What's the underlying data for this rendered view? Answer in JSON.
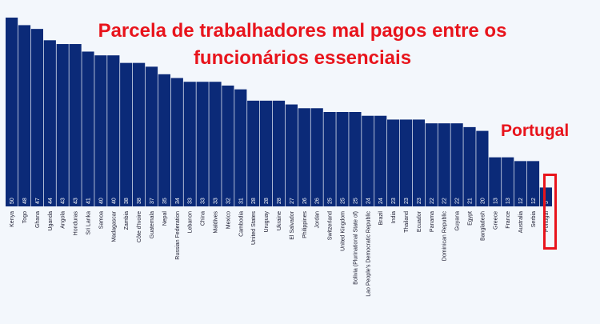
{
  "colors": {
    "bar": "#0b2a78",
    "highlight": "#e8141c",
    "background": "#f3f7fc"
  },
  "chart_data": {
    "type": "bar",
    "title": "Parcela de trabalhadores mal pagos entre os funcionários essenciais",
    "highlight_label": "Portugal",
    "highlight_category": "Portugal",
    "categories": [
      "Kenya",
      "Togo",
      "Ghana",
      "Uganda",
      "Angola",
      "Honduras",
      "Sri Lanka",
      "Samoa",
      "Madagascar",
      "Zambia",
      "Côte d'Ivoire",
      "Guatemala",
      "Nepal",
      "Russian Federation",
      "Lebanon",
      "China",
      "Maldives",
      "Mexico",
      "Cambodia",
      "United States",
      "Uruguay",
      "Ukraine",
      "El Salvador",
      "Philippines",
      "Jordan",
      "Switzerland",
      "United Kingdom",
      "Bolivia (Plurinational State of)",
      "Lao People's Democratic Republic",
      "Brazil",
      "India",
      "Thailand",
      "Ecuador",
      "Panama",
      "Dominican Republic",
      "Guyana",
      "Egypt",
      "Bangladesh",
      "Greece",
      "France",
      "Australia",
      "Serbia",
      "Portugal"
    ],
    "values": [
      50,
      48,
      47,
      44,
      43,
      43,
      41,
      40,
      40,
      38,
      38,
      37,
      35,
      34,
      33,
      33,
      33,
      32,
      31,
      28,
      28,
      28,
      27,
      26,
      26,
      25,
      25,
      25,
      24,
      24,
      23,
      23,
      23,
      22,
      22,
      22,
      21,
      20,
      13,
      13,
      12,
      12,
      5
    ],
    "xlabel": "",
    "ylabel": "",
    "ylim": [
      0,
      50
    ],
    "grid": false,
    "legend": "none"
  }
}
